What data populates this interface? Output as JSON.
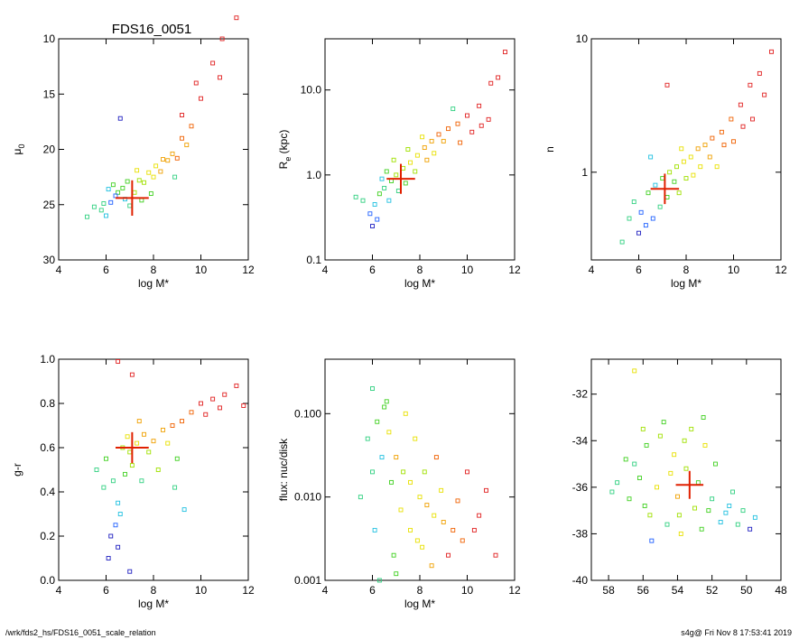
{
  "title": "FDS16_0051",
  "footer": {
    "left": "/wrk/fds2_hs/FDS16_0051_scale_relation",
    "right": "s4g@  Fri Nov  8 17:53:41 2019"
  },
  "colors": {
    "marker_scale": [
      "#2020c0",
      "#2060ff",
      "#20c0e0",
      "#30d080",
      "#40d020",
      "#a0e000",
      "#e8e000",
      "#f0a000",
      "#f06000",
      "#e02020"
    ],
    "highlight": "#e02000"
  },
  "chart_data": [
    {
      "id": "mu0",
      "type": "scatter",
      "xlabel": "log M*",
      "ylabel": "μ0",
      "ylabel_main": "μ",
      "ylabel_sub": "0",
      "xlim": [
        4,
        12
      ],
      "ylim": [
        30,
        10
      ],
      "x_ticks": [
        "4",
        "6",
        "8",
        "10",
        "12"
      ],
      "y_ticks": [
        "10",
        "15",
        "20",
        "25",
        "30"
      ],
      "highlight": {
        "x": 7.1,
        "y": 24.4,
        "xerr": 0.7,
        "yerr": 1.6
      },
      "points": [
        [
          5.8,
          25.5,
          3
        ],
        [
          6.2,
          24.8,
          1
        ],
        [
          6.5,
          23.9,
          4
        ],
        [
          6.8,
          24.5,
          2
        ],
        [
          7.0,
          25.1,
          3
        ],
        [
          6.3,
          23.2,
          4
        ],
        [
          7.4,
          22.8,
          5
        ],
        [
          7.8,
          22.1,
          6
        ],
        [
          8.1,
          21.5,
          6
        ],
        [
          8.4,
          20.9,
          7
        ],
        [
          8.8,
          20.4,
          7
        ],
        [
          9.2,
          19.0,
          8
        ],
        [
          9.6,
          17.9,
          8
        ],
        [
          10.0,
          15.4,
          9
        ],
        [
          10.5,
          12.2,
          9
        ],
        [
          10.9,
          10.0,
          9
        ],
        [
          11.5,
          8.1,
          9
        ],
        [
          6.0,
          26.0,
          2
        ],
        [
          5.5,
          25.2,
          3
        ],
        [
          6.7,
          23.5,
          4
        ],
        [
          7.2,
          23.9,
          5
        ],
        [
          7.6,
          23.0,
          5
        ],
        [
          8.0,
          22.5,
          6
        ],
        [
          8.6,
          21.0,
          7
        ],
        [
          9.0,
          20.8,
          8
        ],
        [
          6.4,
          24.2,
          1
        ],
        [
          6.9,
          22.9,
          4
        ],
        [
          5.2,
          26.1,
          3
        ],
        [
          7.9,
          24.0,
          4
        ],
        [
          8.9,
          22.5,
          3
        ],
        [
          9.2,
          16.9,
          9
        ],
        [
          6.6,
          17.2,
          0
        ],
        [
          9.8,
          14.0,
          9
        ],
        [
          10.8,
          13.5,
          9
        ],
        [
          7.3,
          21.9,
          6
        ],
        [
          6.1,
          23.6,
          2
        ],
        [
          5.9,
          24.9,
          3
        ],
        [
          7.5,
          24.6,
          4
        ],
        [
          8.3,
          22.0,
          7
        ],
        [
          9.4,
          19.6,
          7
        ]
      ]
    },
    {
      "id": "re",
      "type": "scatter",
      "log_y": true,
      "xlabel": "log M*",
      "ylabel": "Re (kpc)",
      "ylabel_main": "R",
      "ylabel_sub": "e",
      "ylabel_tail": " (kpc)",
      "xlim": [
        4,
        12
      ],
      "ylim": [
        0.1,
        40
      ],
      "x_ticks": [
        "4",
        "6",
        "8",
        "10",
        "12"
      ],
      "y_ticks": [
        "0.1",
        "1.0",
        "10.0"
      ],
      "y_tick_values": [
        0.1,
        1.0,
        10.0
      ],
      "highlight": {
        "x": 7.2,
        "y": 0.9,
        "xerr": 0.6,
        "yerr_factor": 1.5
      },
      "points": [
        [
          5.9,
          0.35,
          1
        ],
        [
          6.1,
          0.45,
          2
        ],
        [
          6.3,
          0.6,
          4
        ],
        [
          6.5,
          0.7,
          3
        ],
        [
          6.8,
          0.85,
          4
        ],
        [
          7.0,
          1.0,
          5
        ],
        [
          7.3,
          1.2,
          5
        ],
        [
          7.6,
          1.4,
          6
        ],
        [
          7.9,
          1.7,
          6
        ],
        [
          8.2,
          2.1,
          7
        ],
        [
          8.5,
          2.5,
          7
        ],
        [
          8.8,
          3.0,
          8
        ],
        [
          9.2,
          3.5,
          8
        ],
        [
          9.6,
          4.0,
          8
        ],
        [
          10.0,
          5.0,
          9
        ],
        [
          10.5,
          6.5,
          9
        ],
        [
          11.0,
          12.0,
          9
        ],
        [
          11.6,
          28.0,
          9
        ],
        [
          6.0,
          0.25,
          0
        ],
        [
          6.2,
          0.3,
          1
        ],
        [
          5.6,
          0.5,
          3
        ],
        [
          6.6,
          1.1,
          4
        ],
        [
          7.1,
          0.65,
          3
        ],
        [
          7.4,
          0.8,
          4
        ],
        [
          7.8,
          1.1,
          5
        ],
        [
          8.6,
          1.8,
          6
        ],
        [
          9.0,
          2.5,
          7
        ],
        [
          6.4,
          0.9,
          2
        ],
        [
          6.9,
          1.5,
          5
        ],
        [
          8.1,
          2.8,
          6
        ],
        [
          9.4,
          6.0,
          3
        ],
        [
          10.2,
          3.2,
          9
        ],
        [
          10.9,
          4.5,
          9
        ],
        [
          5.3,
          0.55,
          3
        ],
        [
          6.7,
          0.5,
          2
        ],
        [
          7.5,
          2.0,
          5
        ],
        [
          8.3,
          1.5,
          7
        ],
        [
          9.7,
          2.4,
          8
        ],
        [
          10.6,
          3.8,
          9
        ],
        [
          11.3,
          14.0,
          9
        ]
      ]
    },
    {
      "id": "n",
      "type": "scatter",
      "log_y": true,
      "xlabel": "log M*",
      "ylabel": "n",
      "xlim": [
        4,
        12
      ],
      "ylim": [
        0.22,
        10
      ],
      "x_ticks": [
        "4",
        "6",
        "8",
        "10",
        "12"
      ],
      "y_ticks": [
        "1",
        "10"
      ],
      "y_tick_values": [
        1,
        10
      ],
      "highlight": {
        "x": 7.1,
        "y": 0.75,
        "xerr": 0.6,
        "yerr_factor": 1.3
      },
      "points": [
        [
          5.8,
          0.6,
          3
        ],
        [
          6.1,
          0.5,
          1
        ],
        [
          6.4,
          0.7,
          4
        ],
        [
          6.7,
          0.8,
          2
        ],
        [
          7.0,
          0.9,
          4
        ],
        [
          7.3,
          1.0,
          5
        ],
        [
          7.6,
          1.1,
          5
        ],
        [
          7.9,
          1.2,
          6
        ],
        [
          8.2,
          1.3,
          6
        ],
        [
          8.5,
          1.5,
          7
        ],
        [
          8.8,
          1.6,
          7
        ],
        [
          9.1,
          1.8,
          8
        ],
        [
          9.5,
          2.0,
          8
        ],
        [
          9.9,
          2.5,
          8
        ],
        [
          10.3,
          3.2,
          9
        ],
        [
          10.7,
          4.5,
          9
        ],
        [
          11.1,
          5.5,
          9
        ],
        [
          11.6,
          8.0,
          9
        ],
        [
          6.0,
          0.35,
          0
        ],
        [
          6.3,
          0.4,
          1
        ],
        [
          5.3,
          0.3,
          3
        ],
        [
          6.9,
          0.55,
          3
        ],
        [
          7.2,
          0.65,
          4
        ],
        [
          7.5,
          0.85,
          4
        ],
        [
          8.0,
          0.9,
          5
        ],
        [
          8.6,
          1.1,
          6
        ],
        [
          9.0,
          1.3,
          7
        ],
        [
          6.5,
          1.3,
          2
        ],
        [
          7.8,
          1.5,
          6
        ],
        [
          9.3,
          1.1,
          6
        ],
        [
          10.0,
          1.7,
          8
        ],
        [
          10.8,
          2.5,
          9
        ],
        [
          7.2,
          4.5,
          9
        ],
        [
          6.6,
          0.45,
          1
        ],
        [
          7.7,
          0.7,
          5
        ],
        [
          8.3,
          0.95,
          6
        ],
        [
          9.6,
          1.6,
          8
        ],
        [
          10.4,
          2.2,
          9
        ],
        [
          11.3,
          3.8,
          9
        ],
        [
          5.6,
          0.45,
          3
        ]
      ]
    },
    {
      "id": "gr",
      "type": "scatter",
      "xlabel": "log M*",
      "ylabel": "g-r",
      "xlim": [
        4,
        12
      ],
      "ylim": [
        0.0,
        1.0
      ],
      "x_ticks": [
        "4",
        "6",
        "8",
        "10",
        "12"
      ],
      "y_ticks": [
        "0.0",
        "0.2",
        "0.4",
        "0.6",
        "0.8",
        "1.0"
      ],
      "highlight": {
        "x": 7.1,
        "y": 0.6,
        "xerr": 0.7,
        "yerr": 0.07
      },
      "points": [
        [
          5.6,
          0.5,
          3
        ],
        [
          6.0,
          0.55,
          4
        ],
        [
          6.3,
          0.45,
          3
        ],
        [
          6.5,
          0.35,
          2
        ],
        [
          6.6,
          0.3,
          2
        ],
        [
          6.4,
          0.25,
          1
        ],
        [
          6.2,
          0.2,
          0
        ],
        [
          6.5,
          0.15,
          0
        ],
        [
          7.0,
          0.58,
          5
        ],
        [
          7.3,
          0.62,
          6
        ],
        [
          7.6,
          0.66,
          7
        ],
        [
          8.0,
          0.63,
          7
        ],
        [
          8.4,
          0.68,
          7
        ],
        [
          8.8,
          0.7,
          8
        ],
        [
          9.2,
          0.72,
          8
        ],
        [
          9.6,
          0.76,
          8
        ],
        [
          10.0,
          0.8,
          9
        ],
        [
          10.5,
          0.82,
          9
        ],
        [
          11.0,
          0.84,
          9
        ],
        [
          11.5,
          0.88,
          9
        ],
        [
          6.8,
          0.48,
          4
        ],
        [
          7.1,
          0.52,
          5
        ],
        [
          7.5,
          0.45,
          3
        ],
        [
          8.2,
          0.5,
          5
        ],
        [
          8.9,
          0.42,
          3
        ],
        [
          9.3,
          0.32,
          2
        ],
        [
          6.1,
          0.1,
          0
        ],
        [
          7.0,
          0.04,
          0
        ],
        [
          6.5,
          0.99,
          9
        ],
        [
          7.1,
          0.93,
          9
        ],
        [
          10.2,
          0.75,
          9
        ],
        [
          6.9,
          0.65,
          6
        ],
        [
          7.8,
          0.58,
          5
        ],
        [
          8.6,
          0.62,
          6
        ],
        [
          5.9,
          0.42,
          3
        ],
        [
          6.7,
          0.6,
          5
        ],
        [
          7.4,
          0.72,
          7
        ],
        [
          9.0,
          0.55,
          4
        ],
        [
          10.8,
          0.78,
          9
        ],
        [
          11.8,
          0.79,
          9
        ]
      ]
    },
    {
      "id": "flux",
      "type": "scatter",
      "log_y": true,
      "xlabel": "log M*",
      "ylabel": "flux: nuc/disk",
      "xlim": [
        4,
        12
      ],
      "ylim": [
        0.001,
        0.45
      ],
      "x_ticks": [
        "4",
        "6",
        "8",
        "10",
        "12"
      ],
      "y_ticks": [
        "0.001",
        "0.010",
        "0.100"
      ],
      "y_tick_values": [
        0.001,
        0.01,
        0.1
      ],
      "points": [
        [
          5.8,
          0.05,
          3
        ],
        [
          6.0,
          0.2,
          3
        ],
        [
          6.2,
          0.08,
          4
        ],
        [
          6.5,
          0.12,
          4
        ],
        [
          6.7,
          0.06,
          6
        ],
        [
          7.0,
          0.03,
          7
        ],
        [
          7.3,
          0.02,
          5
        ],
        [
          7.6,
          0.015,
          6
        ],
        [
          8.0,
          0.01,
          6
        ],
        [
          8.3,
          0.008,
          7
        ],
        [
          8.6,
          0.006,
          6
        ],
        [
          9.0,
          0.005,
          7
        ],
        [
          9.4,
          0.004,
          8
        ],
        [
          9.8,
          0.003,
          8
        ],
        [
          10.3,
          0.004,
          9
        ],
        [
          10.8,
          0.012,
          9
        ],
        [
          11.2,
          0.002,
          9
        ],
        [
          6.4,
          0.03,
          2
        ],
        [
          6.8,
          0.015,
          4
        ],
        [
          7.2,
          0.007,
          6
        ],
        [
          7.6,
          0.004,
          6
        ],
        [
          8.1,
          0.0025,
          6
        ],
        [
          8.5,
          0.0015,
          7
        ],
        [
          6.1,
          0.004,
          2
        ],
        [
          6.9,
          0.002,
          4
        ],
        [
          7.8,
          0.05,
          6
        ],
        [
          8.7,
          0.03,
          8
        ],
        [
          10.0,
          0.02,
          9
        ],
        [
          6.6,
          0.14,
          4
        ],
        [
          5.5,
          0.01,
          3
        ],
        [
          7.4,
          0.1,
          6
        ],
        [
          8.9,
          0.012,
          6
        ],
        [
          9.6,
          0.009,
          8
        ],
        [
          6.3,
          0.001,
          3
        ],
        [
          7.0,
          0.0012,
          4
        ],
        [
          8.2,
          0.02,
          5
        ],
        [
          9.2,
          0.002,
          9
        ],
        [
          10.5,
          0.006,
          9
        ],
        [
          7.9,
          0.003,
          6
        ],
        [
          6.0,
          0.02,
          3
        ]
      ]
    },
    {
      "id": "pos",
      "type": "scatter",
      "xlabel": "",
      "ylabel": "",
      "xlim": [
        59,
        48
      ],
      "ylim": [
        -40,
        -30.5
      ],
      "x_ticks": [
        "58",
        "56",
        "54",
        "52",
        "50",
        "48"
      ],
      "y_ticks": [
        "-32",
        "-34",
        "-36",
        "-38",
        "-40"
      ],
      "highlight": {
        "x": 53.3,
        "y": -35.9,
        "xerr": 0.8,
        "yerr": 0.6
      },
      "points": [
        [
          56.5,
          -35.0,
          3
        ],
        [
          55.8,
          -34.2,
          4
        ],
        [
          55.0,
          -33.8,
          5
        ],
        [
          54.2,
          -34.6,
          6
        ],
        [
          53.5,
          -35.2,
          5
        ],
        [
          52.8,
          -35.8,
          4
        ],
        [
          52.0,
          -36.5,
          3
        ],
        [
          51.2,
          -37.1,
          2
        ],
        [
          56.8,
          -36.5,
          4
        ],
        [
          55.6,
          -37.2,
          5
        ],
        [
          54.6,
          -37.6,
          3
        ],
        [
          53.8,
          -38.0,
          6
        ],
        [
          52.6,
          -37.8,
          4
        ],
        [
          51.5,
          -37.5,
          2
        ],
        [
          50.5,
          -37.6,
          3
        ],
        [
          49.8,
          -37.8,
          0
        ],
        [
          57.5,
          -35.8,
          3
        ],
        [
          57.0,
          -34.8,
          4
        ],
        [
          56.0,
          -33.5,
          5
        ],
        [
          54.8,
          -33.2,
          4
        ],
        [
          53.2,
          -33.5,
          5
        ],
        [
          52.4,
          -34.2,
          6
        ],
        [
          51.8,
          -35.0,
          4
        ],
        [
          50.8,
          -36.2,
          3
        ],
        [
          55.2,
          -36.0,
          6
        ],
        [
          54.0,
          -36.4,
          7
        ],
        [
          53.0,
          -36.9,
          5
        ],
        [
          52.2,
          -37.0,
          4
        ],
        [
          56.2,
          -35.6,
          4
        ],
        [
          54.4,
          -35.4,
          6
        ],
        [
          53.6,
          -34.0,
          5
        ],
        [
          51.0,
          -36.8,
          2
        ],
        [
          55.5,
          -38.3,
          1
        ],
        [
          49.5,
          -37.3,
          2
        ],
        [
          56.5,
          -31.0,
          6
        ],
        [
          52.5,
          -33.0,
          4
        ],
        [
          57.8,
          -36.2,
          3
        ],
        [
          50.2,
          -37.0,
          3
        ],
        [
          53.9,
          -37.2,
          5
        ],
        [
          55.9,
          -36.8,
          4
        ]
      ]
    }
  ]
}
